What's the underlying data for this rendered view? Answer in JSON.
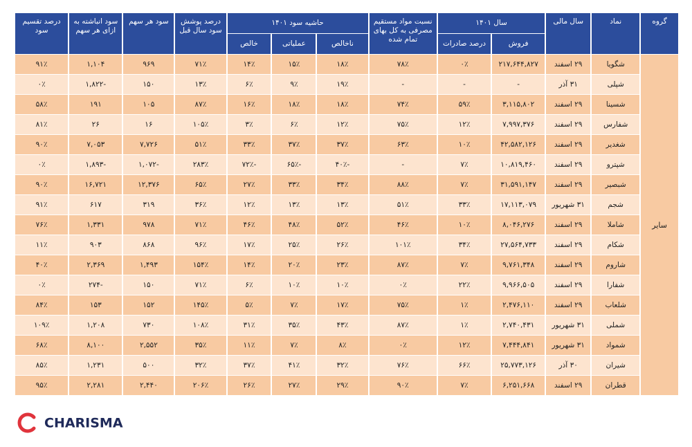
{
  "header": {
    "top": [
      "گروه",
      "نماد",
      "سال مالی",
      "سال ۱۴۰۱",
      "نسبت مواد مستقیم مصرفی به کل بهای تمام شده",
      "حاشیه سود ۱۴۰۱",
      "درصد پوشش سود سال قبل",
      "سود هر سهم",
      "سود انباشته به ازای هر سهم",
      "درصد تقسیم سود"
    ],
    "sub": [
      "فروش",
      "درصد صادرات",
      "ناخالص",
      "عملیاتی",
      "خالص"
    ]
  },
  "table": {
    "group": "سایر",
    "rows": [
      [
        "شگویا",
        "۲۹ اسفند",
        "۲۱۷,۶۴۴,۸۲۷",
        "۰٪",
        "۷۸٪",
        "۱۸٪",
        "۱۵٪",
        "۱۴٪",
        "۷۱٪",
        "۹۶۹",
        "۱,۱۰۴",
        "۹۱٪"
      ],
      [
        "شپلی",
        "۳۱ آذر",
        "-",
        "-",
        "-",
        "۱۹٪",
        "۹٪",
        "۶٪",
        "۱۳٪",
        "۱۵۰",
        "-۱,۸۲۲",
        "۰٪"
      ],
      [
        "شسینا",
        "۲۹ اسفند",
        "۳,۱۱۵,۸۰۲",
        "۵۹٪",
        "۷۴٪",
        "۱۸٪",
        "۱۸٪",
        "۱۶٪",
        "۸۷٪",
        "۱۰۵",
        "۱۹۱",
        "۵۸٪"
      ],
      [
        "شفارس",
        "۲۹ اسفند",
        "۷,۹۹۷,۳۷۶",
        "۱۲٪",
        "۷۵٪",
        "۱۲٪",
        "۶٪",
        "۳٪",
        "۱۰۵٪",
        "۱۶",
        "۲۶",
        "۸۱٪"
      ],
      [
        "شغدیر",
        "۲۹ اسفند",
        "۴۲,۵۸۲,۱۲۶",
        "۱۰٪",
        "۶۳٪",
        "۳۷٪",
        "۳۷٪",
        "۳۳٪",
        "۵۱٪",
        "۷,۷۲۶",
        "۷,۰۵۳",
        "۹۰٪"
      ],
      [
        "شپترو",
        "۲۹ اسفند",
        "۱۰,۸۱۹,۴۶۰",
        "۷٪",
        "-",
        "-۴۰٪",
        "-۶۵٪",
        "-۷۲٪",
        "۲۸۳٪",
        "-۱,۰۷۲",
        "-۱,۸۹۳",
        "۰٪"
      ],
      [
        "شبصیر",
        "۲۹ اسفند",
        "۳۱,۵۹۱,۱۴۷",
        "۷٪",
        "۸۸٪",
        "۳۴٪",
        "۳۳٪",
        "۲۷٪",
        "۶۵٪",
        "۱۲,۳۷۶",
        "۱۶,۷۲۱",
        "۹۰٪"
      ],
      [
        "شجم",
        "۳۱ شهریور",
        "۱۷,۱۱۳,۰۷۹",
        "۳۳٪",
        "۵۱٪",
        "۱۳٪",
        "۱۳٪",
        "۱۲٪",
        "۳۶٪",
        "۳۱۹",
        "۶۱۷",
        "۹۱٪"
      ],
      [
        "شاملا",
        "۲۹ اسفند",
        "۸,۰۴۶,۲۷۶",
        "۱۰٪",
        "۴۶٪",
        "۵۲٪",
        "۴۸٪",
        "۴۶٪",
        "۷۱٪",
        "۹۷۸",
        "۱,۳۳۱",
        "۷۶٪"
      ],
      [
        "شکام",
        "۲۹ اسفند",
        "۲۷,۵۶۴,۷۳۳",
        "۳۴٪",
        "۱۰۱٪",
        "۲۶٪",
        "۲۵٪",
        "۱۷٪",
        "۹۶٪",
        "۸۶۸",
        "۹۰۳",
        "۱۱٪"
      ],
      [
        "شاروم",
        "۲۹ اسفند",
        "۹,۷۶۱,۳۴۸",
        "۷٪",
        "۸۷٪",
        "۲۳٪",
        "۲۰٪",
        "۱۴٪",
        "۱۵۴٪",
        "۱,۴۹۳",
        "۲,۳۶۹",
        "۴۰٪"
      ],
      [
        "شفارا",
        "۲۹ اسفند",
        "۹,۹۶۶,۵۰۵",
        "۲۲٪",
        "۰٪",
        "۱۰٪",
        "۱۰٪",
        "۶٪",
        "۷۱٪",
        "۱۵۰",
        "-۲۷۴",
        "۰٪"
      ],
      [
        "شلعاب",
        "۲۹ اسفند",
        "۲,۴۷۶,۱۱۰",
        "۱٪",
        "۷۵٪",
        "۱۷٪",
        "۷٪",
        "۵٪",
        "۱۴۵٪",
        "۱۵۲",
        "۱۵۳",
        "۸۴٪"
      ],
      [
        "شملی",
        "۳۱ شهریور",
        "۲,۷۴۰,۴۳۱",
        "۱٪",
        "۸۷٪",
        "۴۳٪",
        "۳۵٪",
        "۳۱٪",
        "۱۰۸٪",
        "۷۳۰",
        "۱,۲۰۸",
        "۱۰۹٪"
      ],
      [
        "شمواد",
        "۳۱ شهریور",
        "۷,۴۴۴,۸۴۱",
        "۱۲٪",
        "۰٪",
        "۸٪",
        "۷٪",
        "۱۱٪",
        "۳۵٪",
        "۲,۵۵۲",
        "۸,۱۰۰",
        "۶۸٪"
      ],
      [
        "شیران",
        "۳۰ آذر",
        "۲۵,۷۷۳,۱۲۶",
        "۶۶٪",
        "۷۶٪",
        "۳۲٪",
        "۴۱٪",
        "۳۷٪",
        "۳۲٪",
        "۵۰۰",
        "۱,۲۳۱",
        "۸۵٪"
      ],
      [
        "قطران",
        "۲۹ اسفند",
        "۶,۲۵۱,۶۶۸",
        "۷٪",
        "۹۰٪",
        "۲۹٪",
        "۲۷٪",
        "۲۶٪",
        "۲۰۶٪",
        "۲,۴۴۰",
        "۲,۲۸۱",
        "۹۵٪"
      ]
    ]
  },
  "logo": "CHARISMA"
}
